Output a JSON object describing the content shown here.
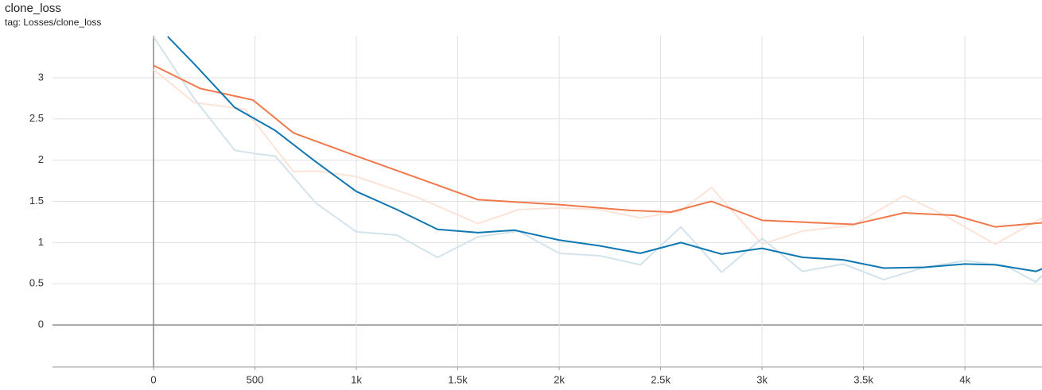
{
  "chart_data": {
    "type": "line",
    "title": "clone_loss",
    "subtitle": "tag: Losses/clone_loss",
    "xlim": [
      -498,
      4380
    ],
    "ylim": [
      -0.51,
      3.51
    ],
    "xticks": [
      0,
      500,
      {
        "value": 1000,
        "label": "1k"
      },
      {
        "value": 1500,
        "label": "1.5k"
      },
      {
        "value": 2000,
        "label": "2k"
      },
      {
        "value": 2500,
        "label": "2.5k"
      },
      {
        "value": 3000,
        "label": "3k"
      },
      {
        "value": 3500,
        "label": "3.5k"
      },
      {
        "value": 4000,
        "label": "4k"
      }
    ],
    "yticks": [
      0,
      0.5,
      1,
      1.5,
      2,
      2.5,
      3
    ],
    "grid": true,
    "series": [
      {
        "color": "#fbe3d8",
        "x": [
          0,
          200,
          450,
          690,
          800,
          1000,
          1300,
          1600,
          1800,
          2000,
          2200,
          2400,
          2600,
          2750,
          3000,
          3200,
          3450,
          3700,
          3900,
          4150,
          4380
        ],
        "values": [
          3.1,
          2.7,
          2.62,
          1.86,
          1.87,
          1.8,
          1.55,
          1.23,
          1.4,
          1.42,
          1.4,
          1.3,
          1.38,
          1.67,
          0.98,
          1.14,
          1.21,
          1.57,
          1.33,
          0.98,
          1.3
        ]
      },
      {
        "color": "#d3e3ec",
        "x": [
          0,
          200,
          400,
          500,
          600,
          800,
          1000,
          1200,
          1400,
          1600,
          1800,
          2000,
          2200,
          2400,
          2600,
          2800,
          3000,
          3200,
          3400,
          3600,
          3800,
          4000,
          4200,
          4350,
          4380
        ],
        "values": [
          3.5,
          2.75,
          2.12,
          2.08,
          2.05,
          1.48,
          1.13,
          1.09,
          0.82,
          1.07,
          1.14,
          0.87,
          0.84,
          0.73,
          1.19,
          0.64,
          1.05,
          0.65,
          0.74,
          0.55,
          0.7,
          0.78,
          0.72,
          0.52,
          0.6
        ]
      },
      {
        "color": "#f0784a",
        "x": [
          0,
          230,
          490,
          690,
          1000,
          1600,
          2000,
          2350,
          2550,
          2750,
          3000,
          3450,
          3700,
          3950,
          4150,
          4380
        ],
        "values": [
          3.15,
          2.87,
          2.73,
          2.33,
          2.05,
          1.52,
          1.46,
          1.39,
          1.37,
          1.5,
          1.27,
          1.22,
          1.36,
          1.33,
          1.19,
          1.24
        ]
      },
      {
        "color": "#0f77b1",
        "x": [
          70,
          200,
          400,
          600,
          800,
          1000,
          1200,
          1400,
          1600,
          1780,
          2000,
          2200,
          2400,
          2600,
          2800,
          3000,
          3200,
          3400,
          3600,
          3800,
          4000,
          4150,
          4350,
          4380
        ],
        "values": [
          3.5,
          3.17,
          2.64,
          2.36,
          1.98,
          1.62,
          1.4,
          1.16,
          1.12,
          1.15,
          1.03,
          0.96,
          0.87,
          1.0,
          0.86,
          0.93,
          0.82,
          0.79,
          0.69,
          0.7,
          0.74,
          0.73,
          0.65,
          0.68
        ]
      }
    ]
  }
}
